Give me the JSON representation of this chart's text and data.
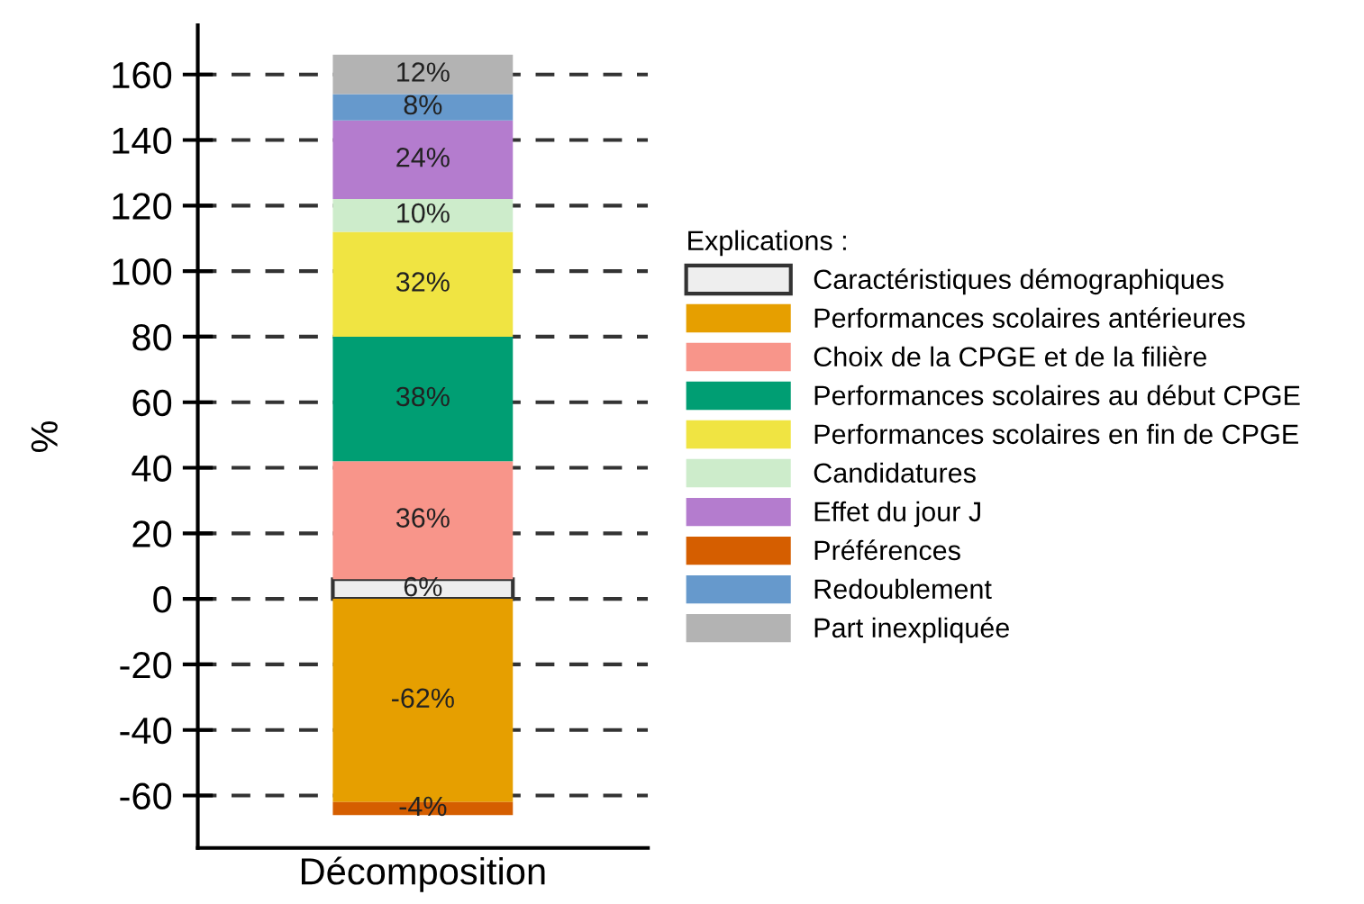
{
  "chart_data": {
    "type": "bar",
    "stacked": true,
    "ylabel": "%",
    "legend_title": "Explications :",
    "categories": [
      "Décomposition"
    ],
    "series": [
      {
        "name": "Caractéristiques démographiques",
        "color": "#eeeeee",
        "values": [
          6
        ],
        "value_labels": [
          "6%"
        ]
      },
      {
        "name": "Performances scolaires antérieures",
        "color": "#e69f00",
        "values": [
          -62
        ],
        "value_labels": [
          "-62%"
        ]
      },
      {
        "name": "Choix de la CPGE et de la filière",
        "color": "#f8958a",
        "values": [
          36
        ],
        "value_labels": [
          "36%"
        ]
      },
      {
        "name": "Performances scolaires au début CPGE",
        "color": "#009e73",
        "values": [
          38
        ],
        "value_labels": [
          "38%"
        ]
      },
      {
        "name": "Performances scolaires en fin de CPGE",
        "color": "#f0e442",
        "values": [
          32
        ],
        "value_labels": [
          "32%"
        ]
      },
      {
        "name": "Candidatures",
        "color": "#cdeccb",
        "values": [
          10
        ],
        "value_labels": [
          "10%"
        ]
      },
      {
        "name": "Effet du jour J",
        "color": "#b47cce",
        "values": [
          24
        ],
        "value_labels": [
          "24%"
        ]
      },
      {
        "name": "Préférences",
        "color": "#d55e00",
        "values": [
          -4
        ],
        "value_labels": [
          "-4%"
        ]
      },
      {
        "name": "Redoublement",
        "color": "#6699cc",
        "values": [
          8
        ],
        "value_labels": [
          "8%"
        ]
      },
      {
        "name": "Part inexpliquée",
        "color": "#b3b3b3",
        "values": [
          12
        ],
        "value_labels": [
          "12%"
        ]
      }
    ],
    "ylim": [
      -76,
      175
    ],
    "yticks": [
      -60,
      -40,
      -20,
      0,
      20,
      40,
      60,
      80,
      100,
      120,
      140,
      160
    ],
    "grid": "y",
    "legend": "right"
  }
}
